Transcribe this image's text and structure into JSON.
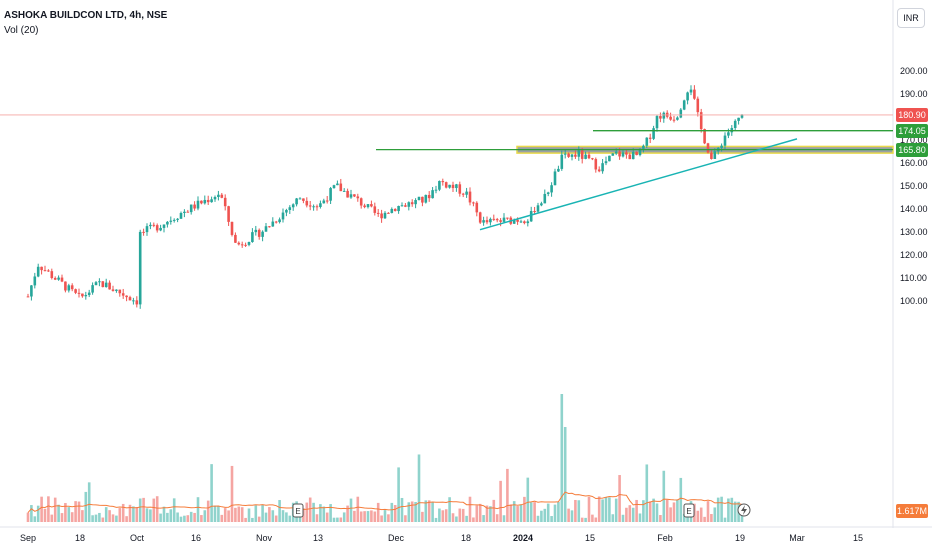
{
  "header": {
    "title": "ASHOKA BUILDCON LTD, 4h, NSE",
    "indicator": "Vol (20)",
    "currency": "INR"
  },
  "price_tags": {
    "last": "180.90",
    "resistance": "174.05",
    "support": "165.80",
    "volume": "1.617M"
  },
  "colors": {
    "up": "#26a69a",
    "down": "#ef5350",
    "up_vol": "#8fd3cc",
    "down_vol": "#f5a5a2",
    "vol_ma": "#f57c3a",
    "hline": "#2e9e3a",
    "trend": "#19b4b4",
    "zone": "#7a8087",
    "zone_border": "#e8d94a",
    "last_line": "#f5a5a2"
  },
  "chart_data": {
    "type": "candlestick",
    "y_axis": {
      "min": 95,
      "max": 200,
      "ticks": [
        100,
        110,
        120,
        130,
        140,
        150,
        160,
        170,
        180,
        190,
        200
      ]
    },
    "x_ticks": [
      "Sep",
      "18",
      "Oct",
      "16",
      "Nov",
      "13",
      "Dec",
      "18",
      "2024",
      "15",
      "Feb",
      "19",
      "Mar",
      "15"
    ],
    "anchors": [
      {
        "date": "Sep",
        "close": 102
      },
      {
        "date": "Sep 8",
        "close": 116
      },
      {
        "date": "Sep 18",
        "close": 101
      },
      {
        "date": "Sep 25",
        "close": 108
      },
      {
        "date": "Oct",
        "close": 100
      },
      {
        "date": "Oct 3",
        "close": 113
      },
      {
        "date": "Oct 9",
        "close": 128
      },
      {
        "date": "Oct 14",
        "close": 133
      },
      {
        "date": "Oct 19",
        "close": 138
      },
      {
        "date": "Oct 25",
        "close": 147
      },
      {
        "date": "Oct 27",
        "close": 124
      },
      {
        "date": "Nov",
        "close": 131
      },
      {
        "date": "Nov 8",
        "close": 145
      },
      {
        "date": "Nov 13",
        "close": 141
      },
      {
        "date": "Nov 17",
        "close": 150
      },
      {
        "date": "Nov 22",
        "close": 143
      },
      {
        "date": "Nov 28",
        "close": 137
      },
      {
        "date": "Dec",
        "close": 141
      },
      {
        "date": "Dec 8",
        "close": 144
      },
      {
        "date": "Dec 11",
        "close": 152
      },
      {
        "date": "Dec 18",
        "close": 147
      },
      {
        "date": "Dec 20",
        "close": 134
      },
      {
        "date": "Dec 28",
        "close": 136
      },
      {
        "date": "2024",
        "close": 141
      },
      {
        "date": "Jan 5",
        "close": 145
      },
      {
        "date": "Jan 8",
        "close": 162
      },
      {
        "date": "Jan 11",
        "close": 164
      },
      {
        "date": "Jan 16",
        "close": 158
      },
      {
        "date": "Jan 22",
        "close": 164
      },
      {
        "date": "Jan 28",
        "close": 163
      },
      {
        "date": "Feb",
        "close": 170
      },
      {
        "date": "Feb 3",
        "close": 181
      },
      {
        "date": "Feb 6",
        "close": 180
      },
      {
        "date": "Feb 9",
        "close": 195
      },
      {
        "date": "Feb 12",
        "close": 176
      },
      {
        "date": "Feb 14",
        "close": 161
      },
      {
        "date": "Feb 16",
        "close": 172
      },
      {
        "date": "Feb 19",
        "close": 181
      }
    ],
    "last_price": 180.9,
    "horizontal_lines": [
      174.05,
      165.8
    ],
    "support_zone": [
      164.3,
      167.2
    ],
    "trendline": [
      {
        "date": "Dec 22",
        "price": 131
      },
      {
        "date": "Feb 24",
        "price": 170.5
      }
    ],
    "volume_unit": "M",
    "last_volume": 1.617
  }
}
